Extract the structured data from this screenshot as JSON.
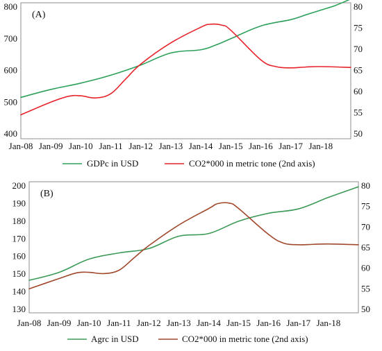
{
  "chart_data": [
    {
      "type": "line",
      "panel_label": "(A)",
      "x_tick_labels": [
        "Jan-08",
        "Jan-09",
        "Jan-10",
        "Jan-11",
        "Jan-12",
        "Jan-13",
        "Jan-14",
        "Jan-15",
        "Jan-16",
        "Jan-17",
        "Jan-18"
      ],
      "x_range": [
        2008.0,
        2019.0
      ],
      "y_left": {
        "ylim": [
          400,
          800
        ],
        "ticks": [
          400,
          500,
          600,
          700,
          800
        ]
      },
      "y_right": {
        "ylim": [
          50,
          80
        ],
        "ticks": [
          50,
          55,
          60,
          65,
          70,
          75,
          80
        ]
      },
      "legend_position": "bottom",
      "series": [
        {
          "name": "GDPc in USD",
          "axis": "left",
          "color": "#2ca05a",
          "x": [
            2008.0,
            2009.0,
            2010.0,
            2011.0,
            2012.0,
            2013.0,
            2014.0,
            2014.5,
            2015.0,
            2016.0,
            2017.0,
            2017.5,
            2018.0,
            2018.5,
            2019.0
          ],
          "values": [
            515,
            540,
            560,
            585,
            617,
            655,
            665,
            680,
            700,
            740,
            760,
            775,
            790,
            805,
            825
          ]
        },
        {
          "name": "CO2*000 in metric tone (2nd axis)",
          "axis": "right",
          "color": "#e8222a",
          "x": [
            2008.0,
            2009.0,
            2009.6,
            2010.0,
            2010.5,
            2011.0,
            2011.5,
            2012.0,
            2013.0,
            2014.0,
            2014.3,
            2014.7,
            2015.0,
            2016.0,
            2016.5,
            2017.0,
            2017.5,
            2018.0,
            2019.0
          ],
          "values": [
            54.5,
            57.5,
            58.9,
            59.0,
            58.5,
            59.5,
            63.0,
            66.5,
            71.5,
            75.2,
            75.9,
            75.7,
            74.5,
            67.5,
            65.9,
            65.6,
            65.8,
            65.9,
            65.7
          ]
        }
      ]
    },
    {
      "type": "line",
      "panel_label": "(B)",
      "x_tick_labels": [
        "Jan-08",
        "Jan-09",
        "Jan-10",
        "Jan-11",
        "Jan-12",
        "Jan-13",
        "Jan-14",
        "Jan-15",
        "Jan-16",
        "Jan-17",
        "Jan-18"
      ],
      "x_range": [
        2008.0,
        2019.0
      ],
      "y_left": {
        "ylim": [
          130,
          200
        ],
        "ticks": [
          130,
          140,
          150,
          160,
          170,
          180,
          190,
          200
        ]
      },
      "y_right": {
        "ylim": [
          50,
          80
        ],
        "ticks": [
          50,
          55,
          60,
          65,
          70,
          75,
          80
        ]
      },
      "legend_position": "bottom",
      "series": [
        {
          "name": "Agrc in USD",
          "axis": "left",
          "color": "#3a9a55",
          "x": [
            2008.0,
            2009.0,
            2010.0,
            2011.0,
            2012.0,
            2013.0,
            2014.0,
            2015.0,
            2016.0,
            2017.0,
            2018.0,
            2019.0
          ],
          "values": [
            146.5,
            151,
            158.5,
            162,
            164.5,
            171.5,
            173,
            180,
            184.5,
            187,
            193.5,
            199.5
          ]
        },
        {
          "name": "CO2*000 in metric tone (2nd axis)",
          "axis": "right",
          "color": "#a0472a",
          "x": [
            2008.0,
            2009.0,
            2009.6,
            2010.0,
            2010.5,
            2011.0,
            2011.5,
            2012.0,
            2013.0,
            2014.0,
            2014.3,
            2014.7,
            2015.0,
            2016.0,
            2016.5,
            2017.0,
            2017.5,
            2018.0,
            2019.0
          ],
          "values": [
            55.0,
            57.5,
            58.9,
            59.0,
            58.7,
            59.5,
            62.5,
            65.5,
            70.5,
            74.5,
            75.7,
            75.8,
            74.5,
            68.2,
            66.1,
            65.7,
            65.8,
            65.9,
            65.7
          ]
        }
      ]
    }
  ]
}
